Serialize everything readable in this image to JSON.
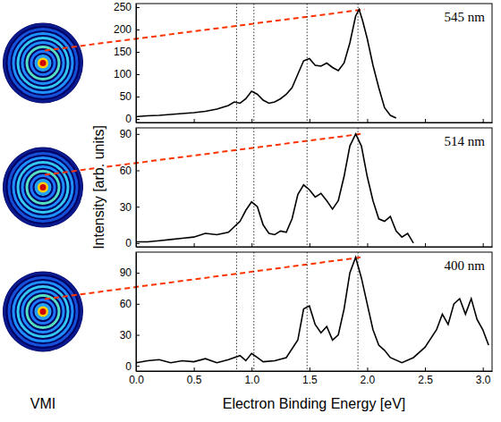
{
  "vmi_label": "VMI",
  "chart_data": [
    {
      "type": "line",
      "title": "545 nm",
      "x": [
        0,
        0.1,
        0.2,
        0.3,
        0.4,
        0.5,
        0.6,
        0.7,
        0.8,
        0.85,
        0.9,
        0.95,
        1.0,
        1.05,
        1.1,
        1.15,
        1.2,
        1.25,
        1.3,
        1.35,
        1.4,
        1.45,
        1.5,
        1.55,
        1.6,
        1.65,
        1.7,
        1.75,
        1.8,
        1.85,
        1.9,
        1.93,
        1.96,
        2.0,
        2.05,
        2.1,
        2.15,
        2.2,
        2.25
      ],
      "series": [
        {
          "color": "#000000",
          "values": [
            5,
            7,
            8,
            10,
            12,
            14,
            17,
            22,
            30,
            38,
            35,
            45,
            62,
            55,
            42,
            35,
            38,
            45,
            55,
            70,
            100,
            130,
            135,
            120,
            118,
            125,
            115,
            108,
            125,
            170,
            230,
            245,
            220,
            180,
            120,
            70,
            25,
            8,
            2
          ]
        }
      ],
      "xlim": [
        0,
        3.08
      ],
      "xticks": [
        {
          "value": 0,
          "label": "0.0"
        },
        0.5,
        {
          "value": 1,
          "label": "1.0"
        },
        1.5,
        {
          "value": 2,
          "label": "2.0"
        },
        2.5,
        {
          "value": 3,
          "label": "3.0"
        }
      ],
      "ylim": [
        -8,
        258
      ],
      "yticks": [
        0,
        50,
        100,
        150,
        200,
        250
      ],
      "tick_labels": "y",
      "vlines": [
        0.87,
        1.02,
        1.48,
        1.92
      ]
    },
    {
      "type": "line",
      "title": "514 nm",
      "ylabel": "Intensity [arb. units]",
      "x": [
        0,
        0.1,
        0.2,
        0.3,
        0.4,
        0.5,
        0.6,
        0.7,
        0.8,
        0.9,
        0.95,
        1.0,
        1.05,
        1.1,
        1.15,
        1.2,
        1.25,
        1.3,
        1.35,
        1.4,
        1.45,
        1.5,
        1.55,
        1.6,
        1.65,
        1.7,
        1.75,
        1.8,
        1.85,
        1.9,
        1.95,
        2.0,
        2.05,
        2.1,
        2.15,
        2.2,
        2.25,
        2.3,
        2.35,
        2.4
      ],
      "series": [
        {
          "color": "#000000",
          "values": [
            1,
            1,
            2,
            3,
            4,
            5,
            8,
            7,
            9,
            18,
            27,
            34,
            30,
            15,
            8,
            7,
            10,
            9,
            20,
            40,
            48,
            44,
            38,
            41,
            35,
            28,
            35,
            55,
            80,
            90,
            80,
            55,
            35,
            20,
            18,
            22,
            10,
            5,
            8,
            0
          ]
        }
      ],
      "xlim": [
        0,
        3.08
      ],
      "xticks": [
        {
          "value": 0,
          "label": "0.0"
        },
        0.5,
        {
          "value": 1,
          "label": "1.0"
        },
        1.5,
        {
          "value": 2,
          "label": "2.0"
        },
        2.5,
        {
          "value": 3,
          "label": "3.0"
        }
      ],
      "ylim": [
        -3,
        95
      ],
      "yticks": [
        0,
        30,
        60,
        90
      ],
      "tick_labels": "y",
      "vlines": [
        0.87,
        1.02,
        1.48,
        1.92
      ]
    },
    {
      "type": "line",
      "title": "400 nm",
      "xlabel": "Electron Binding Energy [eV]",
      "x": [
        0,
        0.1,
        0.2,
        0.3,
        0.4,
        0.5,
        0.6,
        0.7,
        0.8,
        0.9,
        0.95,
        1.0,
        1.05,
        1.1,
        1.2,
        1.3,
        1.4,
        1.45,
        1.5,
        1.55,
        1.6,
        1.65,
        1.7,
        1.75,
        1.8,
        1.85,
        1.9,
        1.95,
        2.0,
        2.05,
        2.1,
        2.15,
        2.2,
        2.3,
        2.4,
        2.5,
        2.6,
        2.65,
        2.7,
        2.75,
        2.8,
        2.85,
        2.9,
        2.95,
        3.0,
        3.05
      ],
      "series": [
        {
          "color": "#000000",
          "values": [
            3,
            5,
            6,
            3,
            5,
            4,
            7,
            3,
            6,
            10,
            5,
            12,
            8,
            4,
            5,
            8,
            25,
            55,
            58,
            40,
            32,
            38,
            25,
            30,
            55,
            90,
            105,
            85,
            60,
            35,
            20,
            15,
            8,
            3,
            8,
            18,
            35,
            50,
            40,
            60,
            65,
            50,
            65,
            45,
            35,
            20
          ]
        }
      ],
      "xlim": [
        0,
        3.08
      ],
      "xticks": [
        {
          "value": 0,
          "label": "0.0"
        },
        0.5,
        {
          "value": 1,
          "label": "1.0"
        },
        1.5,
        {
          "value": 2,
          "label": "2.0"
        },
        2.5,
        {
          "value": 3,
          "label": "3.0"
        }
      ],
      "ylim": [
        -5,
        110
      ],
      "yticks": [
        0,
        30,
        60,
        90
      ],
      "vlines": [
        0.87,
        1.02,
        1.48,
        1.92
      ]
    }
  ]
}
